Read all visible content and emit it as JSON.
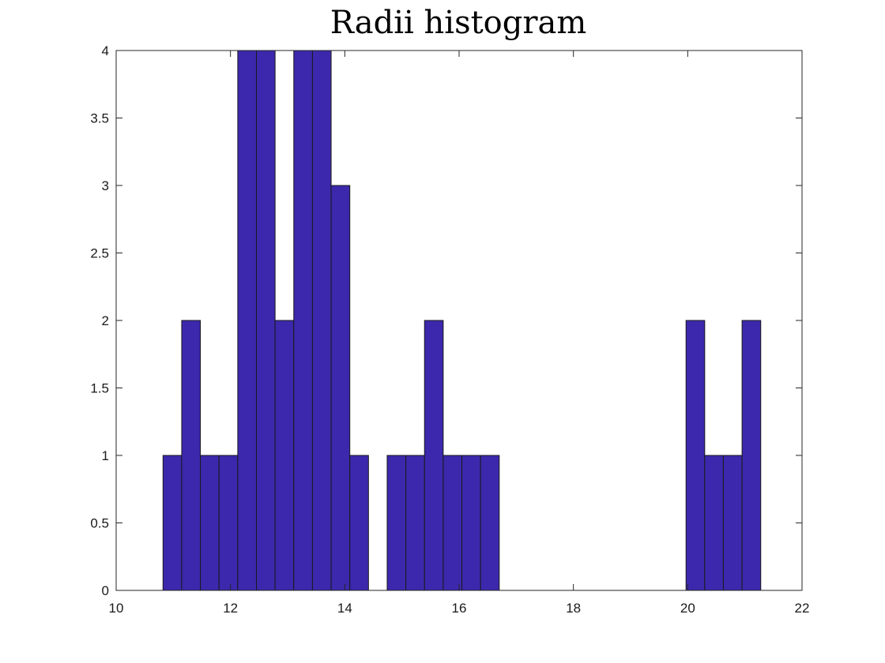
{
  "chart_data": {
    "type": "bar",
    "title": "Radii histogram",
    "xlabel": "",
    "ylabel": "",
    "xlim": [
      10,
      22
    ],
    "ylim": [
      0,
      4
    ],
    "xticks": [
      10,
      12,
      14,
      16,
      18,
      20,
      22
    ],
    "xtick_labels": [
      "10",
      "12",
      "14",
      "16",
      "18",
      "20",
      "22"
    ],
    "yticks": [
      0,
      0.5,
      1,
      1.5,
      2,
      2.5,
      3,
      3.5,
      4
    ],
    "ytick_labels": [
      "0",
      "0.5",
      "1",
      "1.5",
      "2",
      "2.5",
      "3",
      "3.5",
      "4"
    ],
    "bin_start": 10.82,
    "bin_width": 0.3268,
    "counts": [
      1,
      2,
      1,
      1,
      4,
      4,
      2,
      4,
      4,
      3,
      1,
      0,
      1,
      1,
      2,
      1,
      1,
      1,
      0,
      0,
      0,
      0,
      0,
      0,
      0,
      0,
      0,
      0,
      2,
      1,
      1,
      2
    ],
    "bar_color": "#3c28ac",
    "edge_color": "#1a1a1a",
    "grid": false
  }
}
